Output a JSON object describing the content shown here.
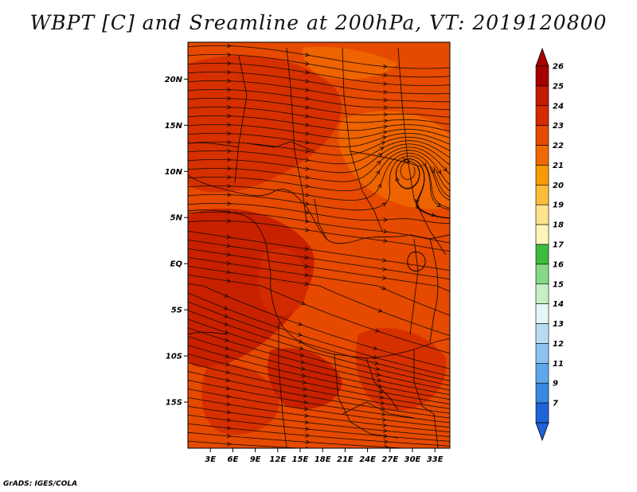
{
  "title": "WBPT [C] and Sreamline at 200hPa, VT: 2019120800",
  "footer": "GrADS: IGES/COLA",
  "map": {
    "lon_range": [
      0,
      35
    ],
    "lat_range": [
      -20,
      24
    ],
    "lat_ticks": [
      {
        "value": 20,
        "label": "20N"
      },
      {
        "value": 15,
        "label": "15N"
      },
      {
        "value": 10,
        "label": "10N"
      },
      {
        "value": 5,
        "label": "5N"
      },
      {
        "value": 0,
        "label": "EQ"
      },
      {
        "value": -5,
        "label": "5S"
      },
      {
        "value": -10,
        "label": "10S"
      },
      {
        "value": -15,
        "label": "15S"
      }
    ],
    "lon_ticks": [
      {
        "value": 3,
        "label": "3E"
      },
      {
        "value": 6,
        "label": "6E"
      },
      {
        "value": 9,
        "label": "9E"
      },
      {
        "value": 12,
        "label": "12E"
      },
      {
        "value": 15,
        "label": "15E"
      },
      {
        "value": 18,
        "label": "18E"
      },
      {
        "value": 21,
        "label": "21E"
      },
      {
        "value": 24,
        "label": "24E"
      },
      {
        "value": 27,
        "label": "27E"
      },
      {
        "value": 30,
        "label": "30E"
      },
      {
        "value": 33,
        "label": "33E"
      }
    ],
    "vortex_center": {
      "lon": 29.5,
      "lat": 10.5
    }
  },
  "colorbar": {
    "levels": [
      {
        "label": "26",
        "color": "#a50000"
      },
      {
        "label": "25",
        "color": "#c31a00"
      },
      {
        "label": "24",
        "color": "#d42b00"
      },
      {
        "label": "23",
        "color": "#e54a00"
      },
      {
        "label": "22",
        "color": "#f06800"
      },
      {
        "label": "21",
        "color": "#f89a00"
      },
      {
        "label": "20",
        "color": "#fbbd3a"
      },
      {
        "label": "19",
        "color": "#fee38c"
      },
      {
        "label": "18",
        "color": "#fdf5b8"
      },
      {
        "label": "17",
        "color": "#3dbb3d"
      },
      {
        "label": "16",
        "color": "#85d885"
      },
      {
        "label": "15",
        "color": "#c5efc5"
      },
      {
        "label": "14",
        "color": "#e6f6f6"
      },
      {
        "label": "13",
        "color": "#b8dcf4"
      },
      {
        "label": "12",
        "color": "#8cc2f0"
      },
      {
        "label": "11",
        "color": "#5ea7ea"
      },
      {
        "label": "9",
        "color": "#3b88e2"
      },
      {
        "label": "7",
        "color": "#1f63d8"
      }
    ],
    "top_arrow_color": "#a50000",
    "bottom_arrow_color": "#1f63d8"
  },
  "colors": {
    "field_base": "#e54a00",
    "field_warm": "#d42b00",
    "field_hot": "#c31a00",
    "field_cool": "#f06800",
    "streamline": "#1a0a00"
  }
}
